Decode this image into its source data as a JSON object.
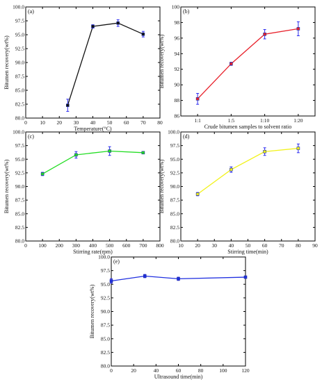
{
  "figure": {
    "colors": {
      "black": "#111111",
      "red": "#e8202a",
      "green": "#22dd22",
      "yellow": "#f2f21a",
      "blue": "#1f2fe0",
      "errorbar": "#2a2af0"
    }
  },
  "chart_data": [
    {
      "type": "line",
      "panel_label": "(a)",
      "xlabel": "Temperature(°C)",
      "ylabel": "Bitumen recovery(wt%)",
      "x": [
        25,
        40,
        55,
        70
      ],
      "y": [
        82.3,
        96.5,
        97.1,
        95.1
      ],
      "error": [
        1.1,
        0.3,
        0.6,
        0.5
      ],
      "xlim": [
        0,
        80
      ],
      "ylim": [
        80.0,
        100.0
      ],
      "xticks": [
        "0",
        "10",
        "20",
        "30",
        "40",
        "50",
        "60",
        "70",
        "80"
      ],
      "xtick_values": [
        0,
        10,
        20,
        30,
        40,
        50,
        60,
        70,
        80
      ],
      "yticks": [
        "80.0",
        "82.5",
        "85.0",
        "87.5",
        "90.0",
        "92.5",
        "95.0",
        "97.5",
        "100.0"
      ],
      "ytick_values": [
        80,
        82.5,
        85,
        87.5,
        90,
        92.5,
        95,
        97.5,
        100
      ],
      "color": "#111111",
      "marker": "square",
      "grid": false
    },
    {
      "type": "line",
      "panel_label": "(b)",
      "xlabel": "Crude bitumen samples to solvent ratio",
      "ylabel": "Bitumen recovery(wt%)",
      "x": [
        "1:1",
        "1:5",
        "1:10",
        "1:20"
      ],
      "y": [
        88.2,
        92.7,
        96.5,
        97.2
      ],
      "error": [
        0.7,
        0.2,
        0.6,
        0.9
      ],
      "ylim": [
        86,
        100
      ],
      "xticks": [
        "1:1",
        "1:5",
        "1:10",
        "1:20"
      ],
      "yticks": [
        "86",
        "88",
        "90",
        "92",
        "94",
        "96",
        "98",
        "100"
      ],
      "ytick_values": [
        86,
        88,
        90,
        92,
        94,
        96,
        98,
        100
      ],
      "color": "#e8202a",
      "marker": "square",
      "grid": false
    },
    {
      "type": "line",
      "panel_label": "(c)",
      "xlabel": "Stirring rate(rpm)",
      "ylabel": "Bitumen recovery(wt%)",
      "x": [
        100,
        300,
        500,
        700
      ],
      "y": [
        92.3,
        95.8,
        96.5,
        96.2
      ],
      "error": [
        0.3,
        0.6,
        0.8,
        0.1
      ],
      "xlim": [
        0,
        800
      ],
      "ylim": [
        80.0,
        100.0
      ],
      "xticks": [
        "0",
        "100",
        "200",
        "300",
        "400",
        "500",
        "600",
        "700",
        "800"
      ],
      "xtick_values": [
        0,
        100,
        200,
        300,
        400,
        500,
        600,
        700,
        800
      ],
      "yticks": [
        "80.0",
        "82.5",
        "85.0",
        "87.5",
        "90.0",
        "92.5",
        "95.0",
        "97.5",
        "100.0"
      ],
      "ytick_values": [
        80,
        82.5,
        85,
        87.5,
        90,
        92.5,
        95,
        97.5,
        100
      ],
      "color": "#22dd22",
      "marker": "square",
      "grid": false
    },
    {
      "type": "line",
      "panel_label": "(d)",
      "xlabel": "Stirring time(min)",
      "ylabel": "Bitumen recovery(wt%)",
      "x": [
        20,
        40,
        60,
        80
      ],
      "y": [
        88.6,
        93.1,
        96.4,
        97.0
      ],
      "error": [
        0.3,
        0.5,
        0.7,
        0.8
      ],
      "xlim": [
        10,
        90
      ],
      "ylim": [
        80.0,
        100.0
      ],
      "xticks": [
        "10",
        "20",
        "30",
        "40",
        "50",
        "60",
        "70",
        "80",
        "90"
      ],
      "xtick_values": [
        10,
        20,
        30,
        40,
        50,
        60,
        70,
        80,
        90
      ],
      "yticks": [
        "80.0",
        "82.5",
        "85.0",
        "87.5",
        "90.0",
        "92.5",
        "95.0",
        "97.5",
        "100.0"
      ],
      "ytick_values": [
        80,
        82.5,
        85,
        87.5,
        90,
        92.5,
        95,
        97.5,
        100
      ],
      "color": "#f2f21a",
      "marker": "square",
      "grid": false
    },
    {
      "type": "line",
      "panel_label": "(e)",
      "xlabel": "Ultrasound time(min)",
      "ylabel": "Bitumen recovery(wt%)",
      "x": [
        0,
        30,
        60,
        120
      ],
      "y": [
        95.6,
        96.5,
        96.0,
        96.3
      ],
      "error": [
        0.4,
        0.3,
        0.3,
        0.2
      ],
      "xlim": [
        0,
        120
      ],
      "ylim": [
        80.0,
        100.0
      ],
      "xticks": [
        "0",
        "20",
        "40",
        "60",
        "80",
        "100",
        "120"
      ],
      "xtick_values": [
        0,
        20,
        40,
        60,
        80,
        100,
        120
      ],
      "yticks": [
        "80.0",
        "82.5",
        "85.0",
        "87.5",
        "90.0",
        "92.5",
        "95.0",
        "97.5",
        "100.0"
      ],
      "ytick_values": [
        80,
        82.5,
        85,
        87.5,
        90,
        92.5,
        95,
        97.5,
        100
      ],
      "color": "#1f2fe0",
      "marker": "square",
      "grid": false
    }
  ]
}
